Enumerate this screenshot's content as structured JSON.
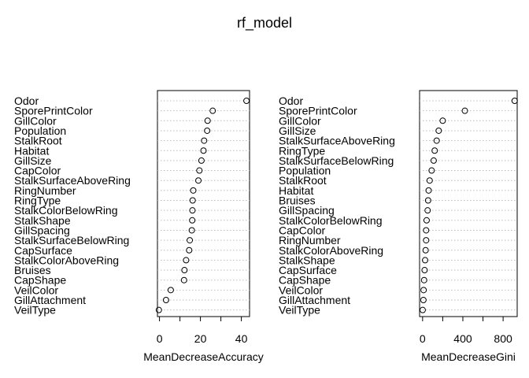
{
  "title": "rf_model",
  "chart_data": [
    {
      "type": "scatter",
      "xlabel": "MeanDecreaseAccuracy",
      "xlim": [
        -1,
        44
      ],
      "xticks": [
        0,
        20,
        40
      ],
      "grid": true,
      "categories": [
        "Odor",
        "SporePrintColor",
        "GillColor",
        "Population",
        "StalkRoot",
        "Habitat",
        "GillSize",
        "CapColor",
        "StalkSurfaceAboveRing",
        "RingNumber",
        "RingType",
        "StalkColorBelowRing",
        "StalkShape",
        "GillSpacing",
        "StalkSurfaceBelowRing",
        "CapSurface",
        "StalkColorAboveRing",
        "Bruises",
        "CapShape",
        "VeilColor",
        "GillAttachment",
        "VeilType"
      ],
      "values": [
        42.5,
        26.0,
        23.5,
        23.3,
        21.8,
        21.5,
        20.5,
        19.5,
        19.0,
        16.5,
        16.2,
        16.1,
        16.0,
        15.8,
        14.8,
        14.5,
        13.0,
        12.2,
        12.0,
        5.5,
        3.2,
        -0.3
      ]
    },
    {
      "type": "scatter",
      "xlabel": "MeanDecreaseGini",
      "xlim": [
        -30,
        940
      ],
      "xticks": [
        0,
        400,
        800
      ],
      "grid": true,
      "categories": [
        "Odor",
        "SporePrintColor",
        "GillColor",
        "GillSize",
        "StalkSurfaceAboveRing",
        "RingType",
        "StalkSurfaceBelowRing",
        "Population",
        "StalkRoot",
        "Habitat",
        "Bruises",
        "GillSpacing",
        "StalkColorBelowRing",
        "CapColor",
        "RingNumber",
        "StalkColorAboveRing",
        "StalkShape",
        "CapSurface",
        "CapShape",
        "VeilColor",
        "GillAttachment",
        "VeilType"
      ],
      "values": [
        915,
        420,
        200,
        160,
        140,
        120,
        110,
        90,
        70,
        60,
        55,
        50,
        40,
        35,
        35,
        30,
        25,
        20,
        15,
        10,
        8,
        1
      ]
    }
  ]
}
